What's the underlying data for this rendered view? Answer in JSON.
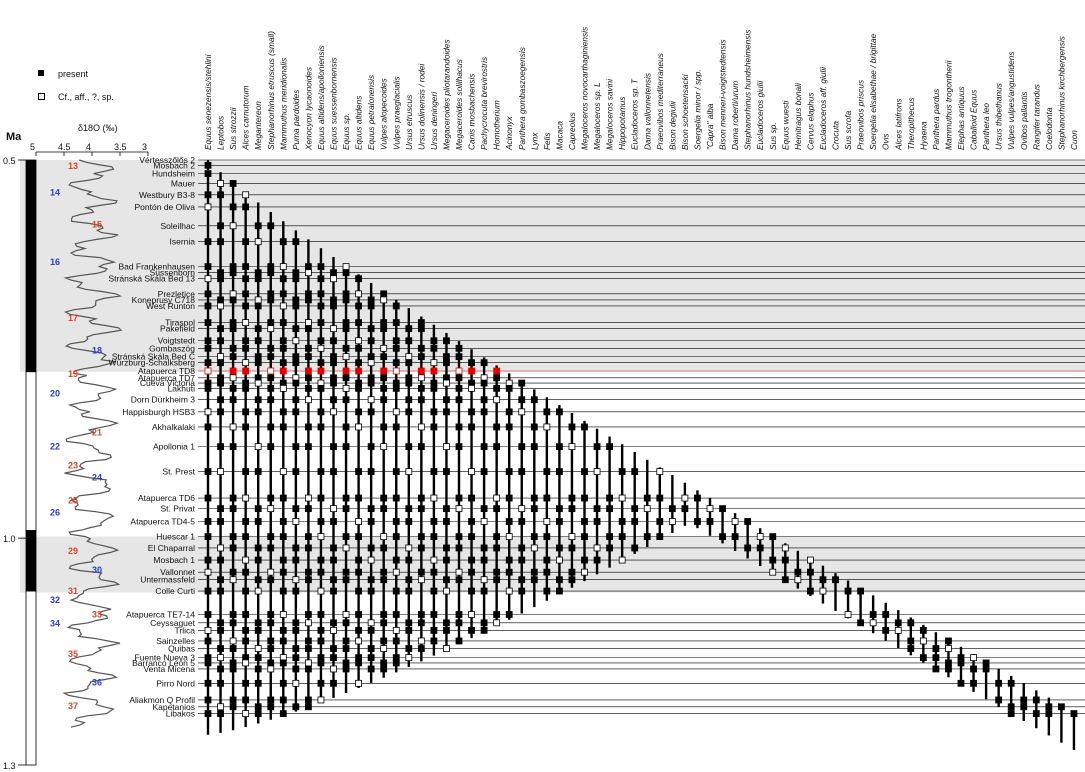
{
  "legend": {
    "present": "present",
    "cf": "Cf., aff., ?, sp."
  },
  "ma_label": "Ma",
  "delta_label": "δ18O (‰)",
  "delta_ticks": [
    "5",
    "4.5",
    "4",
    "3.5",
    "3"
  ],
  "age_ticks": [
    "0.5",
    "1.0",
    "1.3"
  ],
  "colors": {
    "odd_mis": "#d9482b",
    "even_mis": "#2a3fc2",
    "highlight": "#e00000",
    "band": "#e6e6e6",
    "ink": "#000000"
  },
  "taxa": [
    "Equus senezensis/stehlini",
    "Leptobos",
    "Sus strozzii",
    "Alces carnutorum",
    "Megantereon",
    "Stephanorhinus etruscus (small)",
    "Mammuthus meridionalis",
    "Puma pardoides",
    "Xenocyon lycaonoides",
    "Equus altidens/apolloniensis",
    "Equus suessenbornensis",
    "Equus sp.",
    "Equus altidens",
    "Equus petralonensis",
    "Vulpes alopecoides",
    "Vulpes praeglacialis",
    "Ursus etruscus",
    "Ursus dolinensis / rodei",
    "Ursus deningeri",
    "Megaceroides pliotarandoides",
    "Megaceroides solilhacus",
    "Canis mosbachensis",
    "Pachycrocuta brevirostris",
    "Homotherium",
    "Acinonyx",
    "Panthera gombaszoegensis",
    "Lynx",
    "Felis",
    "Macaca",
    "Capreolus",
    "Megaloceros novocarthaginiensis",
    "Megaloceros sp. L",
    "Megaloceros savini",
    "Hippopotamus",
    "Eucladoceros sp. T",
    "Dama vallonnetensis",
    "Praeovibos mediterraneus",
    "Bison degiulii",
    "Bison schoetensacki",
    "Soergelia minor / spp.",
    "\"Capra\" alba",
    "Bison menneri-voigtstedtensis",
    "Dama roberti/urum",
    "Stephanorhinus hundsheimensis",
    "Eucladoceros giulii",
    "Sus sp.",
    "Equus wuesti",
    "Hemitragus bonali",
    "Cervus elaphus",
    "Eucladoceros aff. giulii",
    "Crocuta",
    "Sus scrofa",
    "Praeovibos priscus",
    "Soergelia elisabethae / brigittae",
    "Ovis",
    "Alces latifrons",
    "Theropithecus",
    "Hyaena",
    "Panthera pardus",
    "Mammuthus trogontherii",
    "Elephas antiquus",
    "Caballoid Equus",
    "Panthera leo",
    "Ursus thibethanus",
    "Vulpes vulpes/angustidens",
    "Ovibos pallantis",
    "Rangifer tarandus",
    "Coelodonta",
    "Stephanorhinus kirchbergensis",
    "Cuon"
  ],
  "sites": [
    {
      "name": "Vértesszőlős 2",
      "age": 0.5
    },
    {
      "name": "Mosbach 2",
      "age": 0.507
    },
    {
      "name": "Hundsheim",
      "age": 0.518
    },
    {
      "name": "Mauer",
      "age": 0.531
    },
    {
      "name": "Westbury B3-8",
      "age": 0.546
    },
    {
      "name": "Pontón de Oliva",
      "age": 0.562
    },
    {
      "name": "Soleilhac",
      "age": 0.587
    },
    {
      "name": "Isernia",
      "age": 0.608
    },
    {
      "name": "Bad Frankenhausen",
      "age": 0.641
    },
    {
      "name": "Süssenborn",
      "age": 0.649
    },
    {
      "name": "Stránská Skála Bed 13",
      "age": 0.657
    },
    {
      "name": "Prezletice",
      "age": 0.677
    },
    {
      "name": "Koneprusy C718",
      "age": 0.685
    },
    {
      "name": "West Runton",
      "age": 0.693
    },
    {
      "name": "Tiraspol",
      "age": 0.715
    },
    {
      "name": "Pakefield",
      "age": 0.723
    },
    {
      "name": "Voigtstedt",
      "age": 0.739
    },
    {
      "name": "Gombaszög",
      "age": 0.749
    },
    {
      "name": "Stránská Skála Bed C",
      "age": 0.76
    },
    {
      "name": "Würzburg-Schalksberg",
      "age": 0.768
    },
    {
      "name": "Atapuerca TD8",
      "age": 0.779,
      "highlight": true
    },
    {
      "name": "Atapuerca TD7",
      "age": 0.788
    },
    {
      "name": "Cueva Victoria",
      "age": 0.795
    },
    {
      "name": "Lakhuti",
      "age": 0.802
    },
    {
      "name": "Dorn Dürkheim 3",
      "age": 0.817
    },
    {
      "name": "Happisburgh HSB3",
      "age": 0.833
    },
    {
      "name": "Akhalkalaki",
      "age": 0.853
    },
    {
      "name": "Apollonia 1",
      "age": 0.879
    },
    {
      "name": "St. Prest",
      "age": 0.912
    },
    {
      "name": "Atapuerca TD6",
      "age": 0.947
    },
    {
      "name": "St. Privat",
      "age": 0.961
    },
    {
      "name": "Atapuerca TD4-5",
      "age": 0.978
    },
    {
      "name": "Huescar 1",
      "age": 0.998
    },
    {
      "name": "El Chaparral",
      "age": 1.013
    },
    {
      "name": "Mosbach 1",
      "age": 1.029
    },
    {
      "name": "Vallonnet",
      "age": 1.045
    },
    {
      "name": "Untermassfeld",
      "age": 1.055
    },
    {
      "name": "Colle Curti",
      "age": 1.07
    },
    {
      "name": "Atapuerca TE7-14",
      "age": 1.101
    },
    {
      "name": "Ceyssaguet",
      "age": 1.112
    },
    {
      "name": "Trlica",
      "age": 1.122
    },
    {
      "name": "Sainzelles",
      "age": 1.136
    },
    {
      "name": "Quibas",
      "age": 1.146
    },
    {
      "name": "Fuente Nueva 3",
      "age": 1.158
    },
    {
      "name": "Barranco León 5",
      "age": 1.165
    },
    {
      "name": "Venta Micena",
      "age": 1.173
    },
    {
      "name": "Pirro Nord",
      "age": 1.192
    },
    {
      "name": "Aliakmon Q Profil",
      "age": 1.214
    },
    {
      "name": "Kapetanios",
      "age": 1.223
    },
    {
      "name": "Libakos",
      "age": 1.232
    }
  ],
  "mis": [
    {
      "n": "13",
      "age": 0.508
    },
    {
      "n": "14",
      "age": 0.543
    },
    {
      "n": "15",
      "age": 0.585
    },
    {
      "n": "16",
      "age": 0.635
    },
    {
      "n": "17",
      "age": 0.709
    },
    {
      "n": "18",
      "age": 0.752
    },
    {
      "n": "19",
      "age": 0.783
    },
    {
      "n": "20",
      "age": 0.809
    },
    {
      "n": "21",
      "age": 0.86
    },
    {
      "n": "22",
      "age": 0.879
    },
    {
      "n": "23",
      "age": 0.904
    },
    {
      "n": "24",
      "age": 0.92
    },
    {
      "n": "25",
      "age": 0.95
    },
    {
      "n": "26",
      "age": 0.966
    },
    {
      "n": "29",
      "age": 1.017
    },
    {
      "n": "30",
      "age": 1.042
    },
    {
      "n": "31",
      "age": 1.07
    },
    {
      "n": "32",
      "age": 1.082
    },
    {
      "n": "33",
      "age": 1.101
    },
    {
      "n": "34",
      "age": 1.113
    },
    {
      "n": "35",
      "age": 1.153
    },
    {
      "n": "36",
      "age": 1.191
    },
    {
      "n": "37",
      "age": 1.222
    }
  ],
  "bands": [
    [
      0.5,
      0.78
    ],
    [
      0.998,
      1.072
    ]
  ],
  "polarity": [
    [
      0.5,
      0.78,
      "black"
    ],
    [
      0.78,
      0.99,
      "white"
    ],
    [
      0.99,
      1.07,
      "black"
    ],
    [
      1.07,
      1.3,
      "white"
    ]
  ]
}
